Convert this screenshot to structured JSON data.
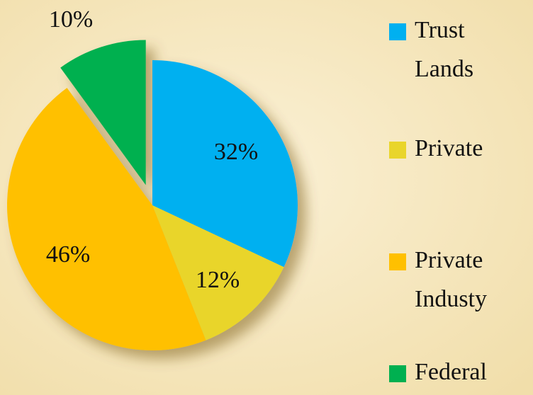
{
  "chart_data": {
    "type": "pie",
    "categories": [
      "Trust Lands",
      "Private",
      "Private Industy",
      "Federal"
    ],
    "values": [
      32,
      12,
      46,
      10
    ],
    "value_labels": [
      "32%",
      "12%",
      "46%",
      "10%"
    ],
    "colors": [
      "#00b0f0",
      "#e9d52b",
      "#ffc000",
      "#00b050"
    ],
    "exploded": [
      false,
      false,
      false,
      true
    ],
    "legend": "right"
  }
}
